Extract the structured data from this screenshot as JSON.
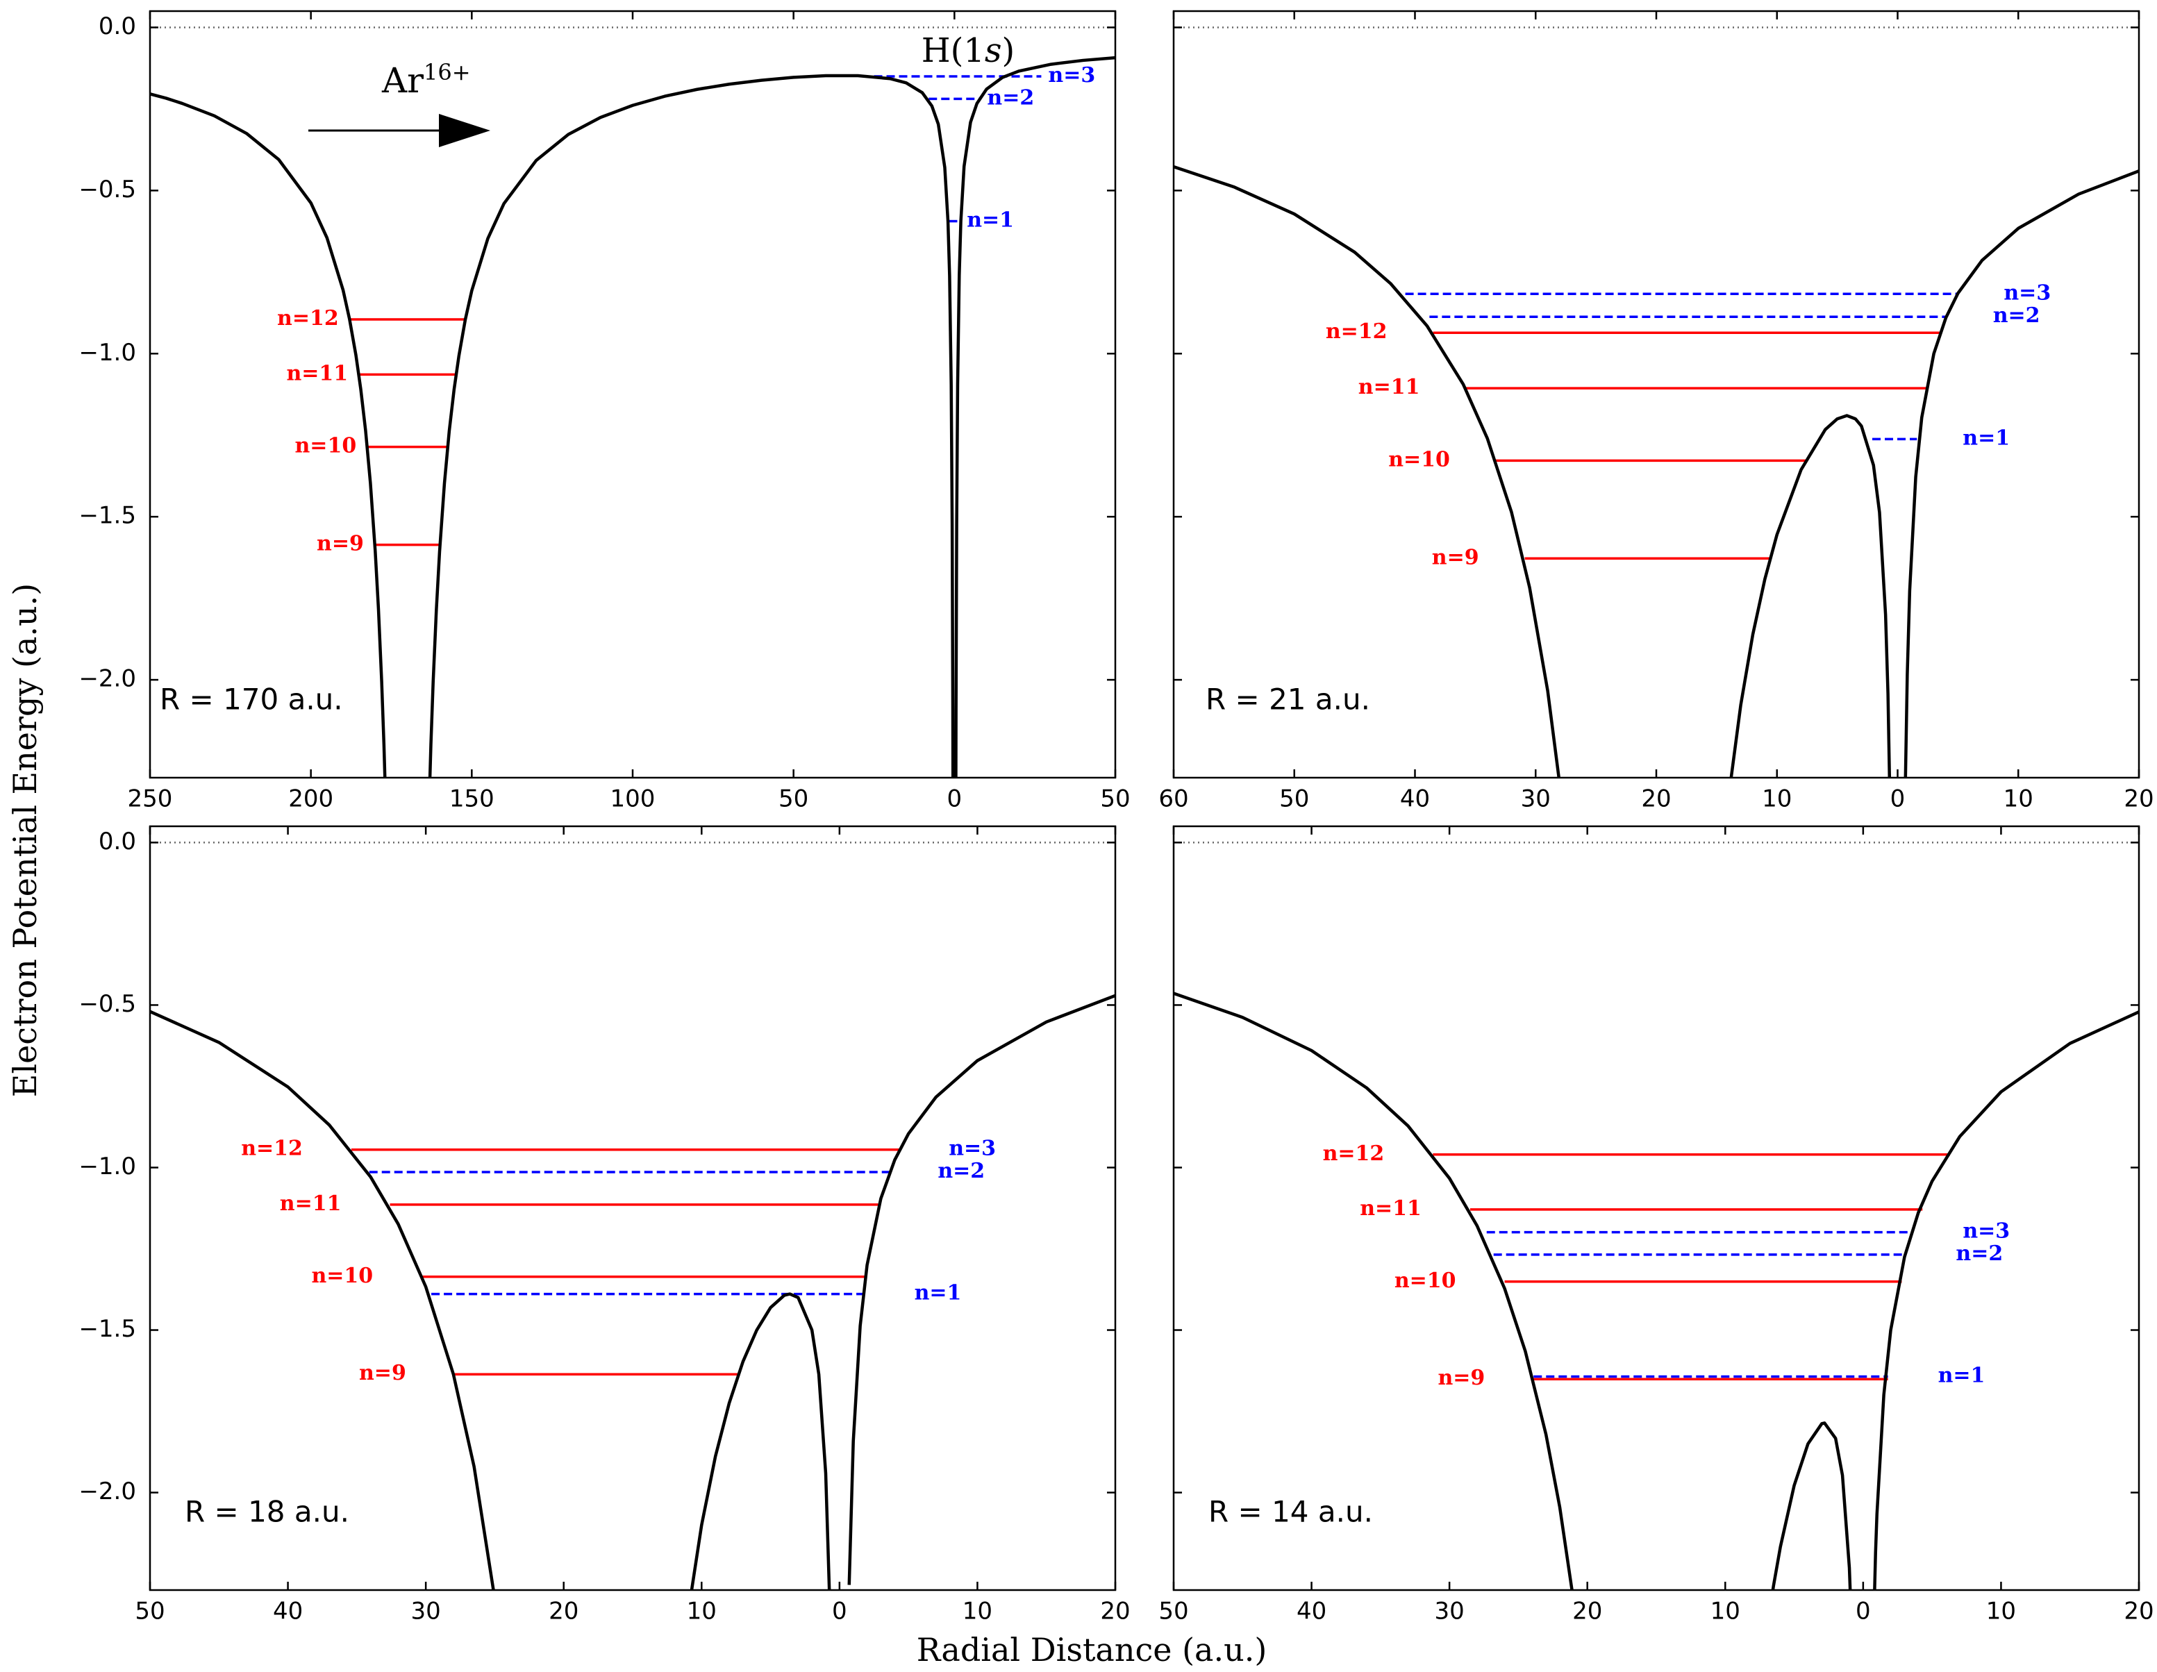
{
  "figure": {
    "ylabel": "Electron Potential Energy (a.u.)",
    "xlabel": "Radial Distance (a.u.)"
  },
  "chart_data": [
    {
      "type": "line",
      "annotation": "R = 170 a.u.",
      "ion_label": {
        "base": "Ar",
        "sup": "16+"
      },
      "target_label": [
        "H(1",
        "s",
        ")"
      ],
      "xlim": [
        -250,
        50
      ],
      "ylim": [
        -2.3,
        0.05
      ],
      "xticks": [
        {
          "value": -250,
          "label": "250"
        },
        {
          "value": -200,
          "label": "200"
        },
        {
          "value": -150,
          "label": "150"
        },
        {
          "value": -100,
          "label": "100"
        },
        {
          "value": -50,
          "label": "50"
        },
        0,
        50
      ],
      "yticks": [
        {
          "value": 0,
          "label": "0.0"
        },
        {
          "value": -0.5,
          "label": "−0.5"
        },
        {
          "value": -1,
          "label": "−1.0"
        },
        {
          "value": -1.5,
          "label": "−1.5"
        },
        {
          "value": -2,
          "label": "−2.0"
        }
      ],
      "hline": 0,
      "curve": {
        "color": "#000000",
        "x": [
          -250,
          -245,
          -240,
          -230,
          -220,
          -210,
          -200,
          -195,
          -190,
          -188,
          -186,
          -184.5,
          -183,
          -181.5,
          -180,
          -179,
          -178,
          -177.3,
          -176.5,
          null,
          -163.5,
          -162.7,
          -162,
          -161,
          -160,
          -158.5,
          -157,
          -155.5,
          -154,
          -152,
          -150,
          -145,
          -140,
          -130,
          -120,
          -110,
          -100,
          -90,
          -80,
          -70,
          -60,
          -50,
          -40,
          -30,
          -20,
          -15,
          -10,
          -7,
          -5,
          -3,
          -2,
          -1.5,
          -1,
          -0.7,
          -0.5,
          -0.4,
          null,
          0.4,
          0.5,
          0.7,
          1,
          1.5,
          2,
          3,
          5,
          7,
          10,
          15,
          20,
          30,
          40,
          50
        ],
        "values": [
          -0.204,
          -0.217,
          -0.233,
          -0.271,
          -0.325,
          -0.405,
          -0.538,
          -0.645,
          -0.805,
          -0.894,
          -1.005,
          -1.109,
          -1.236,
          -1.397,
          -1.606,
          -1.783,
          -2.006,
          -2.197,
          -2.467,
          null,
          -2.468,
          -2.198,
          -2.006,
          -1.784,
          -1.606,
          -1.398,
          -1.237,
          -1.11,
          -1.007,
          -0.895,
          -0.807,
          -0.647,
          -0.54,
          -0.408,
          -0.328,
          -0.276,
          -0.239,
          -0.211,
          -0.19,
          -0.174,
          -0.162,
          -0.153,
          -0.148,
          -0.148,
          -0.157,
          -0.17,
          -0.2,
          -0.241,
          -0.297,
          -0.429,
          -0.595,
          -0.762,
          -1.095,
          -1.523,
          -2.094,
          -2.594,
          null,
          -2.594,
          -2.094,
          -1.522,
          -1.094,
          -0.76,
          -0.593,
          -0.426,
          -0.291,
          -0.233,
          -0.189,
          -0.153,
          -0.134,
          -0.113,
          -0.101,
          -0.093
        ]
      },
      "levels": [
        {
          "name": "n=3",
          "color": "#0000ff",
          "style": "dashed",
          "x": [
            -25,
            27
          ],
          "values": [
            -0.15,
            -0.15
          ]
        },
        {
          "name": "n=2",
          "color": "#0000ff",
          "style": "dashed",
          "x": [
            -8,
            8
          ],
          "values": [
            -0.219,
            -0.219
          ]
        },
        {
          "name": "n=1",
          "color": "#0000ff",
          "style": "dashed",
          "x": [
            -1.7,
            1.7
          ],
          "values": [
            -0.594,
            -0.594
          ]
        },
        {
          "name": "n=12",
          "color": "#ff0000",
          "style": "solid",
          "x": [
            -187.9,
            -152.1
          ],
          "values": [
            -0.895,
            -0.895
          ]
        },
        {
          "name": "n=11",
          "color": "#ff0000",
          "style": "solid",
          "x": [
            -185,
            -155
          ],
          "values": [
            -1.064,
            -1.064
          ]
        },
        {
          "name": "n=10",
          "color": "#ff0000",
          "style": "solid",
          "x": [
            -182.4,
            -157.6
          ],
          "values": [
            -1.286,
            -1.286
          ]
        },
        {
          "name": "n=9",
          "color": "#ff0000",
          "style": "solid",
          "x": [
            -180.1,
            -159.9
          ],
          "values": [
            -1.586,
            -1.586
          ]
        }
      ]
    },
    {
      "type": "line",
      "annotation": "R = 21 a.u.",
      "xlim": [
        -60,
        20
      ],
      "ylim": [
        -2.3,
        0.05
      ],
      "xticks": [
        {
          "value": -60,
          "label": "60"
        },
        {
          "value": -50,
          "label": "50"
        },
        {
          "value": -40,
          "label": "40"
        },
        {
          "value": -30,
          "label": "30"
        },
        {
          "value": -20,
          "label": "20"
        },
        {
          "value": -10,
          "label": "10"
        },
        0,
        10,
        20
      ],
      "yticks": [
        0,
        -0.5,
        -1,
        -1.5,
        -2
      ],
      "hline": 0,
      "curve": {
        "color": "#000000",
        "x": [
          -60,
          -55,
          -50,
          -45,
          -42,
          -39,
          -36,
          -34,
          -32,
          -30.5,
          -29,
          -28,
          null,
          -14,
          -13,
          -12,
          -11,
          -10,
          -8,
          -6,
          -5,
          -4.2,
          -3.5,
          -3,
          -2,
          -1.5,
          -1,
          -0.8,
          -0.6,
          null,
          0.6,
          0.8,
          1,
          1.5,
          2,
          3,
          4,
          5,
          7,
          10,
          15,
          20
        ],
        "values": [
          -0.427,
          -0.489,
          -0.572,
          -0.689,
          -0.786,
          -0.915,
          -1.094,
          -1.26,
          -1.486,
          -1.717,
          -2.034,
          -2.321,
          null,
          -2.357,
          -2.077,
          -1.861,
          -1.691,
          -1.555,
          -1.356,
          -1.233,
          -1.2,
          -1.19,
          -1.2,
          -1.222,
          -1.342,
          -1.487,
          -1.8,
          -2.042,
          -2.451,
          null,
          -2.407,
          -1.984,
          -1.727,
          -1.378,
          -1.196,
          -1.0,
          -0.89,
          -0.815,
          -0.714,
          -0.616,
          -0.511,
          -0.44
        ]
      },
      "levels": [
        {
          "name": "n=3",
          "color": "#0000ff",
          "style": "dashed",
          "x": [
            -40.8,
            5
          ],
          "values": [
            -0.817,
            -0.817
          ]
        },
        {
          "name": "n=2",
          "color": "#0000ff",
          "style": "dashed",
          "x": [
            -38.8,
            4.1
          ],
          "values": [
            -0.887,
            -0.887
          ]
        },
        {
          "name": "n=1",
          "color": "#0000ff",
          "style": "dashed",
          "x": [
            -2.1,
            1.6
          ],
          "values": [
            -1.262,
            -1.262
          ]
        },
        {
          "name": "n=12",
          "color": "#ff0000",
          "style": "solid",
          "x": [
            -38.5,
            3.6
          ],
          "values": [
            -0.936,
            -0.936
          ]
        },
        {
          "name": "n=11",
          "color": "#ff0000",
          "style": "solid",
          "x": [
            -35.8,
            2.4
          ],
          "values": [
            -1.106,
            -1.106
          ]
        },
        {
          "name": "n=10",
          "color": "#ff0000",
          "style": "solid",
          "x": [
            -33.3,
            -7.6
          ],
          "values": [
            -1.328,
            -1.328
          ]
        },
        {
          "name": "n=9",
          "color": "#ff0000",
          "style": "solid",
          "x": [
            -30.9,
            -10.5
          ],
          "values": [
            -1.628,
            -1.628
          ]
        }
      ]
    },
    {
      "type": "line",
      "annotation": "R = 18 a.u.",
      "xlim": [
        -50,
        20
      ],
      "ylim": [
        -2.3,
        0.05
      ],
      "xticks": [
        {
          "value": -50,
          "label": "50"
        },
        {
          "value": -40,
          "label": "40"
        },
        {
          "value": -30,
          "label": "30"
        },
        {
          "value": -20,
          "label": "20"
        },
        {
          "value": -10,
          "label": "10"
        },
        0,
        10,
        20
      ],
      "yticks": [
        {
          "value": 0,
          "label": "0.0"
        },
        {
          "value": -0.5,
          "label": "−0.5"
        },
        {
          "value": -1,
          "label": "−1.0"
        },
        {
          "value": -1.5,
          "label": "−1.5"
        },
        {
          "value": -2,
          "label": "−2.0"
        }
      ],
      "hline": 0,
      "curve": {
        "color": "#000000",
        "x": [
          -50,
          -45,
          -40,
          -37,
          -34,
          -32,
          -30,
          -28,
          -26.5,
          -25,
          null,
          -11,
          -10,
          -9,
          -8,
          -7,
          -6,
          -5,
          -4,
          -3.6,
          -3,
          -2,
          -1.5,
          -1,
          -0.7,
          null,
          0.7,
          1,
          1.5,
          2,
          3,
          4,
          5,
          7,
          10,
          15,
          20
        ],
        "values": [
          -0.52,
          -0.615,
          -0.752,
          -0.869,
          -1.029,
          -1.174,
          -1.367,
          -1.636,
          -1.92,
          -2.326,
          null,
          -2.377,
          -2.1,
          -1.889,
          -1.725,
          -1.597,
          -1.5,
          -1.431,
          -1.393,
          -1.389,
          -1.4,
          -1.5,
          -1.636,
          -1.941,
          -2.353,
          null,
          -2.284,
          -1.842,
          -1.487,
          -1.3,
          -1.095,
          -0.977,
          -0.896,
          -0.783,
          -0.671,
          -0.552,
          -0.471
        ]
      },
      "levels": [
        {
          "name": "n=3",
          "color": "#0000ff",
          "style": "dashed",
          "x": [
            -35.4,
            4.4
          ],
          "values": [
            -0.945,
            -0.945
          ]
        },
        {
          "name": "n=2",
          "color": "#0000ff",
          "style": "dashed",
          "x": [
            -34.1,
            3.6
          ],
          "values": [
            -1.014,
            -1.014
          ]
        },
        {
          "name": "n=1",
          "color": "#0000ff",
          "style": "dashed",
          "x": [
            -29.6,
            1.9
          ],
          "values": [
            -1.389,
            -1.389
          ]
        },
        {
          "name": "n=12",
          "color": "#ff0000",
          "style": "solid",
          "x": [
            -35.4,
            4.4
          ],
          "values": [
            -0.945,
            -0.945
          ]
        },
        {
          "name": "n=11",
          "color": "#ff0000",
          "style": "solid",
          "x": [
            -32.6,
            2.8
          ],
          "values": [
            -1.114,
            -1.114
          ]
        },
        {
          "name": "n=10",
          "color": "#ff0000",
          "style": "solid",
          "x": [
            -30.3,
            2.0
          ],
          "values": [
            -1.336,
            -1.336
          ]
        },
        {
          "name": "n=9",
          "color": "#ff0000",
          "style": "solid",
          "x": [
            -27.9,
            -7.4
          ],
          "values": [
            -1.636,
            -1.636
          ]
        }
      ]
    },
    {
      "type": "line",
      "annotation": "R = 14 a.u.",
      "xlim": [
        -50,
        20
      ],
      "ylim": [
        -2.3,
        0.05
      ],
      "xticks": [
        {
          "value": -50,
          "label": "50"
        },
        {
          "value": -40,
          "label": "40"
        },
        {
          "value": -30,
          "label": "30"
        },
        {
          "value": -20,
          "label": "20"
        },
        {
          "value": -10,
          "label": "10"
        },
        0,
        10,
        20
      ],
      "yticks": [
        0,
        -0.5,
        -1,
        -1.5,
        -2
      ],
      "hline": 0,
      "curve": {
        "color": "#000000",
        "x": [
          -50,
          -45,
          -40,
          -36,
          -33,
          -30,
          -28,
          -26,
          -24.5,
          -23,
          -22,
          -21,
          null,
          -7,
          -6.5,
          -6,
          -5,
          -4,
          -3,
          -2.8,
          -2,
          -1.5,
          -1,
          -0.8,
          null,
          0.7,
          0.9,
          1,
          1.5,
          2,
          3,
          4,
          5,
          7,
          10,
          15,
          20
        ],
        "values": [
          -0.464,
          -0.538,
          -0.64,
          -0.755,
          -0.872,
          -1.033,
          -1.179,
          -1.372,
          -1.565,
          -1.821,
          -2.045,
          -2.333,
          null,
          -2.429,
          -2.287,
          -2.167,
          -1.978,
          -1.85,
          -1.788,
          -1.786,
          -1.833,
          -1.947,
          -2.231,
          -2.462,
          null,
          -2.517,
          -2.185,
          -2.067,
          -1.699,
          -1.5,
          -1.275,
          -1.139,
          -1.042,
          -0.905,
          -0.767,
          -0.618,
          -0.521
        ]
      },
      "levels": [
        {
          "name": "n=3",
          "color": "#0000ff",
          "style": "dashed",
          "x": [
            -27.3,
            3.6
          ],
          "values": [
            -1.199,
            -1.199
          ]
        },
        {
          "name": "n=2",
          "color": "#0000ff",
          "style": "dashed",
          "x": [
            -26.8,
            3.1
          ],
          "values": [
            -1.268,
            -1.268
          ]
        },
        {
          "name": "n=1",
          "color": "#0000ff",
          "style": "dashed",
          "x": [
            -23.9,
            1.8
          ],
          "values": [
            -1.643,
            -1.643
          ]
        },
        {
          "name": "n=12",
          "color": "#ff0000",
          "style": "solid",
          "x": [
            -31.2,
            6.3
          ],
          "values": [
            -0.96,
            -0.96
          ]
        },
        {
          "name": "n=11",
          "color": "#ff0000",
          "style": "solid",
          "x": [
            -28.5,
            4.3
          ],
          "values": [
            -1.129,
            -1.129
          ]
        },
        {
          "name": "n=10",
          "color": "#ff0000",
          "style": "solid",
          "x": [
            -26,
            2.8
          ],
          "values": [
            -1.351,
            -1.351
          ]
        },
        {
          "name": "n=9",
          "color": "#ff0000",
          "style": "solid",
          "x": [
            -23.9,
            1.8
          ],
          "values": [
            -1.651,
            -1.651
          ]
        }
      ]
    }
  ]
}
